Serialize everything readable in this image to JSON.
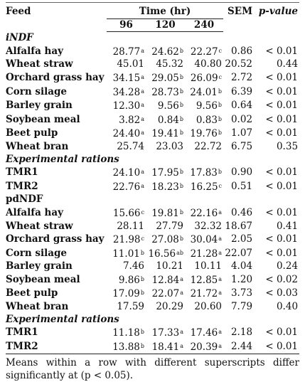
{
  "header": {
    "feed": "Feed",
    "time": "Time (hr)",
    "t96": "96",
    "t120": "120",
    "t240": "240",
    "sem": "SEM",
    "pvalue": "p-value"
  },
  "sections": [
    {
      "title": "iNDF",
      "rows": [
        {
          "feed": "Alfalfa hay",
          "v96": "28.77",
          "s96": "a",
          "v120": "24.62",
          "s120": "b",
          "v240": "22.27",
          "s240": "c",
          "sem": "0.86",
          "p": "< 0.01"
        },
        {
          "feed": "Wheat straw",
          "v96": "45.01",
          "s96": "",
          "v120": "45.32",
          "s120": "",
          "v240": "40.80",
          "s240": "",
          "sem": "20.52",
          "p": "0.44"
        },
        {
          "feed": "Orchard grass hay",
          "v96": "34.15",
          "s96": "a",
          "v120": "29.05",
          "s120": "b",
          "v240": "26.09",
          "s240": "c",
          "sem": "2.72",
          "p": "< 0.01"
        },
        {
          "feed": "Corn silage",
          "v96": "34.28",
          "s96": "a",
          "v120": "28.73",
          "s120": "b",
          "v240": "24.01",
          "s240": "b",
          "sem": "6.39",
          "p": "< 0.01"
        },
        {
          "feed": "Barley grain",
          "v96": "12.30",
          "s96": "a",
          "v120": "9.56",
          "s120": "b",
          "v240": "9.56",
          "s240": "b",
          "sem": "0.64",
          "p": "< 0.01"
        },
        {
          "feed": "Soybean meal",
          "v96": "3.82",
          "s96": "a",
          "v120": "0.84",
          "s120": "b",
          "v240": "0.83",
          "s240": "b",
          "sem": "0.02",
          "p": "< 0.01"
        },
        {
          "feed": "Beet pulp",
          "v96": "24.40",
          "s96": "a",
          "v120": "19.41",
          "s120": "b",
          "v240": "19.76",
          "s240": "b",
          "sem": "1.07",
          "p": "< 0.01"
        },
        {
          "feed": "Wheat bran",
          "v96": "25.74",
          "s96": "",
          "v120": "23.03",
          "s120": "",
          "v240": "22.72",
          "s240": "",
          "sem": "6.75",
          "p": "0.35"
        }
      ]
    },
    {
      "title": "Experimental rations",
      "rows": [
        {
          "feed": "TMR1",
          "v96": "24.10",
          "s96": "a",
          "v120": "17.95",
          "s120": "b",
          "v240": "17.83",
          "s240": "b",
          "sem": "0.90",
          "p": "< 0.01"
        },
        {
          "feed": "TMR2",
          "v96": "22.76",
          "s96": "a",
          "v120": "18.23",
          "s120": "b",
          "v240": "16.25",
          "s240": "c",
          "sem": "0.51",
          "p": "< 0.01"
        }
      ]
    },
    {
      "title": "pdNDF",
      "rows": [
        {
          "feed": "Alfalfa hay",
          "v96": "15.66",
          "s96": "c",
          "v120": "19.81",
          "s120": "b",
          "v240": "22.16",
          "s240": "a",
          "sem": "0.46",
          "p": "< 0.01"
        },
        {
          "feed": "Wheat straw",
          "v96": "28.11",
          "s96": "",
          "v120": "27.79",
          "s120": "",
          "v240": "32.32",
          "s240": "",
          "sem": "18.67",
          "p": "0.41"
        },
        {
          "feed": "Orchard grass hay",
          "v96": "21.98",
          "s96": "c",
          "v120": "27.08",
          "s120": "b",
          "v240": "30.04",
          "s240": "a",
          "sem": "2.05",
          "p": "< 0.01"
        },
        {
          "feed": "Corn silage",
          "v96": "11.01",
          "s96": "b",
          "v120": "16.56",
          "s120": "ab",
          "v240": "21.28",
          "s240": "a",
          "sem": "22.07",
          "p": "< 0.01"
        },
        {
          "feed": "Barley grain",
          "v96": "7.46",
          "s96": "",
          "v120": "10.21",
          "s120": "",
          "v240": "10.11",
          "s240": "",
          "sem": "4.04",
          "p": "0.24"
        },
        {
          "feed": "Soybean meal",
          "v96": "9.86",
          "s96": "b",
          "v120": "12.84",
          "s120": "a",
          "v240": "12.85",
          "s240": "a",
          "sem": "1.20",
          "p": "< 0.02"
        },
        {
          "feed": "Beet pulp",
          "v96": "17.09",
          "s96": "b",
          "v120": "22.07",
          "s120": "a",
          "v240": "21.72",
          "s240": "a",
          "sem": "3.73",
          "p": "< 0.03"
        },
        {
          "feed": "Wheat bran",
          "v96": "17.59",
          "s96": "",
          "v120": "20.29",
          "s120": "",
          "v240": "20.60",
          "s240": "",
          "sem": "7.79",
          "p": "0.40"
        }
      ]
    },
    {
      "title": "Experimental rations",
      "rows": [
        {
          "feed": "TMR1",
          "v96": "11.18",
          "s96": "b",
          "v120": "17.33",
          "s120": "a",
          "v240": "17.46",
          "s240": "a",
          "sem": "2.18",
          "p": "< 0.01"
        },
        {
          "feed": "TMR2",
          "v96": "13.88",
          "s96": "b",
          "v120": "18.41",
          "s120": "a",
          "v240": "20.39",
          "s240": "a",
          "sem": "2.44",
          "p": "< 0.01"
        }
      ]
    }
  ],
  "note": "Means within a row with different superscripts differ significantly at (p < 0.05)."
}
